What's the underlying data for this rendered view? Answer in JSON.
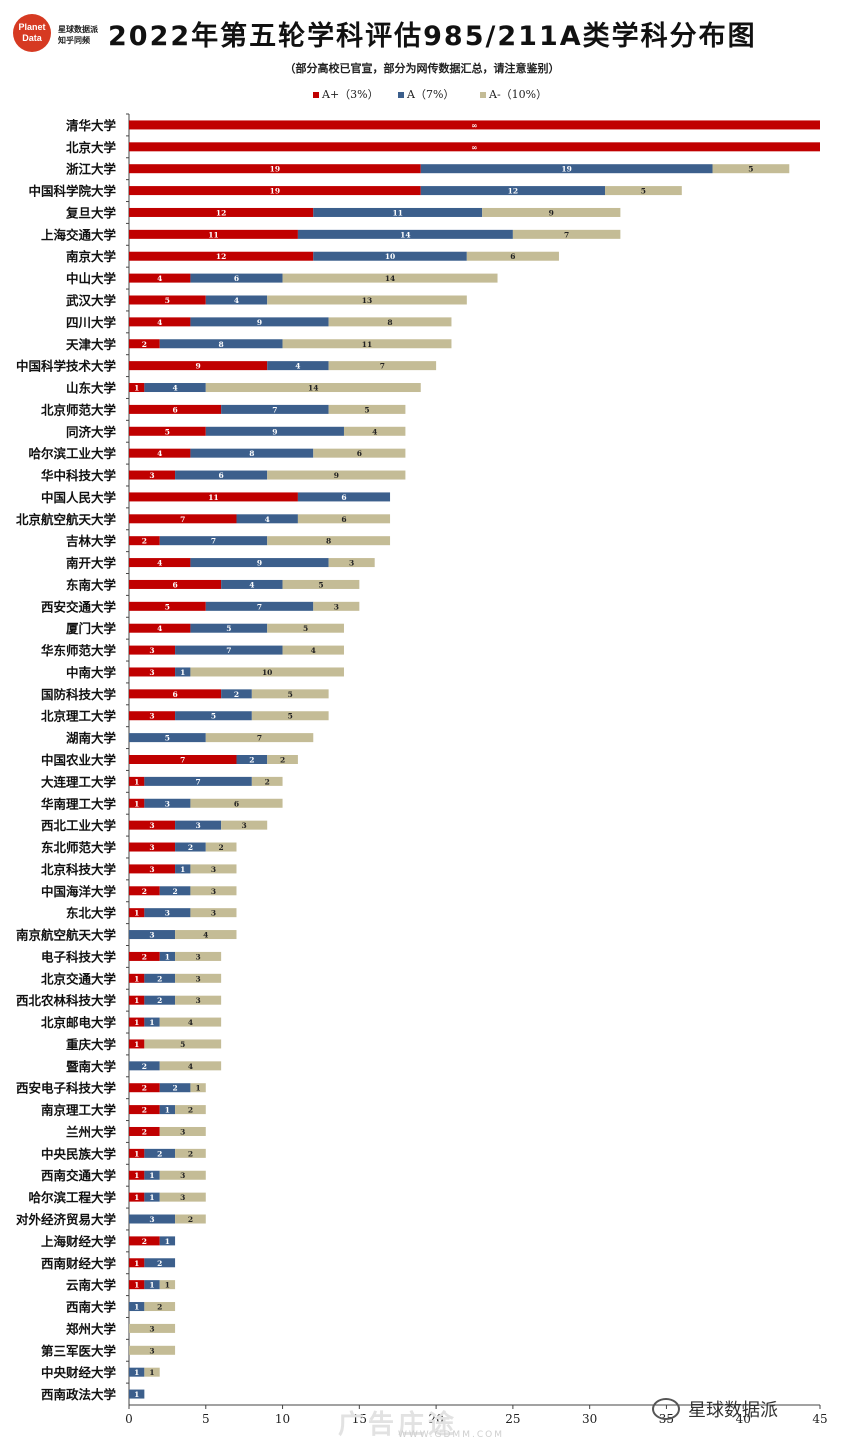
{
  "header": {
    "logo_line1": "Planet",
    "logo_line2": "Data",
    "brand_line1": "星球数据派",
    "brand_line2": "知乎同频",
    "title": "2022年第五轮学科评估985/211A类学科分布图",
    "subtitle": "（部分高校已官宣，部分为网传数据汇总，请注意鉴别）"
  },
  "watermark": {
    "account": "星球数据派",
    "site": "广告庄途",
    "url": "WWW.GDMM.COM"
  },
  "colors": {
    "aplus": "#c00000",
    "a": "#3c5f8c",
    "aminus": "#c4bc96"
  },
  "chart_data": {
    "type": "bar",
    "orientation": "horizontal",
    "stacked": true,
    "xlim": [
      0,
      45
    ],
    "xticks": [
      0,
      5,
      10,
      15,
      20,
      25,
      30,
      35,
      40,
      45
    ],
    "legend_position": "top",
    "categories": [
      "清华大学",
      "北京大学",
      "浙江大学",
      "中国科学院大学",
      "复旦大学",
      "上海交通大学",
      "南京大学",
      "中山大学",
      "武汉大学",
      "四川大学",
      "天津大学",
      "中国科学技术大学",
      "山东大学",
      "北京师范大学",
      "同济大学",
      "哈尔滨工业大学",
      "华中科技大学",
      "中国人民大学",
      "北京航空航天大学",
      "吉林大学",
      "南开大学",
      "东南大学",
      "西安交通大学",
      "厦门大学",
      "华东师范大学",
      "中南大学",
      "国防科技大学",
      "北京理工大学",
      "湖南大学",
      "中国农业大学",
      "大连理工大学",
      "华南理工大学",
      "西北工业大学",
      "东北师范大学",
      "北京科技大学",
      "中国海洋大学",
      "东北大学",
      "南京航空航天大学",
      "电子科技大学",
      "北京交通大学",
      "西北农林科技大学",
      "北京邮电大学",
      "重庆大学",
      "暨南大学",
      "西安电子科技大学",
      "南京理工大学",
      "兰州大学",
      "中央民族大学",
      "西南交通大学",
      "哈尔滨工程大学",
      "对外经济贸易大学",
      "上海财经大学",
      "西南财经大学",
      "云南大学",
      "西南大学",
      "郑州大学",
      "第三军医大学",
      "中央财经大学",
      "西南政法大学"
    ],
    "series": [
      {
        "name": "A+（3%）",
        "label_overrides": {
          "0": "∞",
          "1": "∞"
        },
        "values": [
          45,
          45,
          19,
          19,
          12,
          11,
          12,
          4,
          5,
          4,
          2,
          9,
          1,
          6,
          5,
          4,
          3,
          11,
          7,
          2,
          4,
          6,
          5,
          4,
          3,
          3,
          6,
          3,
          0,
          7,
          1,
          1,
          3,
          3,
          3,
          2,
          1,
          0,
          2,
          1,
          1,
          1,
          1,
          0,
          2,
          2,
          2,
          1,
          1,
          1,
          0,
          2,
          1,
          1,
          0,
          0,
          0,
          0,
          0
        ]
      },
      {
        "name": "A（7%）",
        "values": [
          0,
          0,
          19,
          12,
          11,
          14,
          10,
          6,
          4,
          9,
          8,
          4,
          4,
          7,
          9,
          8,
          6,
          6,
          4,
          7,
          9,
          4,
          7,
          5,
          7,
          1,
          2,
          5,
          5,
          2,
          7,
          3,
          3,
          2,
          1,
          2,
          3,
          3,
          1,
          2,
          2,
          1,
          0,
          2,
          2,
          1,
          0,
          2,
          1,
          1,
          3,
          1,
          2,
          1,
          1,
          0,
          0,
          1,
          1
        ]
      },
      {
        "name": "A-（10%）",
        "values": [
          0,
          0,
          5,
          5,
          9,
          7,
          6,
          14,
          13,
          8,
          11,
          7,
          14,
          5,
          4,
          6,
          9,
          0,
          6,
          8,
          3,
          5,
          3,
          5,
          4,
          10,
          5,
          5,
          7,
          2,
          2,
          6,
          3,
          2,
          3,
          3,
          3,
          4,
          3,
          3,
          3,
          4,
          5,
          4,
          1,
          2,
          3,
          2,
          3,
          3,
          2,
          0,
          0,
          1,
          2,
          3,
          3,
          1,
          0
        ]
      }
    ]
  }
}
